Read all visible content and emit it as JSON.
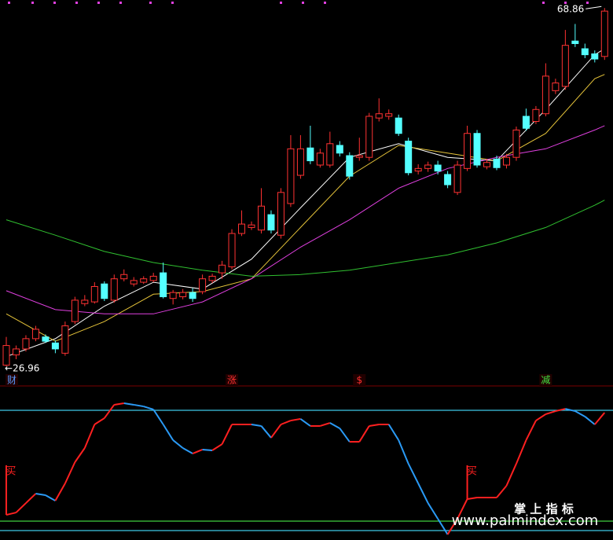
{
  "chart_data": {
    "type": "candlestick",
    "ylim": [
      25.5,
      69.8
    ],
    "up_color": "#ff3232",
    "down_color": "#54ffff",
    "candles": [
      [
        27.1,
        30.4,
        26.96,
        29.4
      ],
      [
        28.3,
        29.4,
        27.8,
        29.0
      ],
      [
        29.0,
        30.6,
        28.7,
        30.2
      ],
      [
        30.2,
        31.7,
        29.9,
        31.3
      ],
      [
        30.4,
        30.7,
        29.7,
        29.9
      ],
      [
        29.7,
        30.0,
        28.5,
        29.0
      ],
      [
        28.5,
        32.2,
        28.2,
        31.7
      ],
      [
        32.2,
        35.1,
        31.9,
        34.7
      ],
      [
        34.3,
        35.3,
        34.0,
        34.7
      ],
      [
        34.5,
        36.8,
        34.3,
        36.3
      ],
      [
        36.6,
        36.9,
        34.6,
        34.9
      ],
      [
        34.7,
        37.7,
        34.4,
        37.2
      ],
      [
        37.2,
        38.3,
        36.9,
        37.7
      ],
      [
        36.6,
        37.4,
        36.3,
        37.0
      ],
      [
        36.8,
        37.5,
        36.6,
        37.2
      ],
      [
        37.0,
        37.9,
        36.8,
        37.5
      ],
      [
        37.9,
        39.1,
        34.9,
        35.1
      ],
      [
        34.9,
        35.9,
        34.2,
        35.6
      ],
      [
        35.1,
        36.0,
        34.8,
        35.6
      ],
      [
        35.6,
        36.1,
        34.5,
        34.9
      ],
      [
        35.7,
        37.7,
        35.4,
        37.2
      ],
      [
        37.0,
        37.8,
        36.7,
        37.5
      ],
      [
        37.9,
        39.3,
        37.2,
        38.8
      ],
      [
        38.6,
        43.0,
        38.3,
        42.5
      ],
      [
        42.5,
        45.2,
        42.2,
        43.6
      ],
      [
        43.2,
        43.9,
        42.9,
        43.5
      ],
      [
        42.9,
        47.8,
        42.5,
        45.7
      ],
      [
        44.7,
        45.2,
        42.5,
        42.9
      ],
      [
        42.3,
        47.8,
        41.9,
        47.3
      ],
      [
        46.0,
        54.0,
        45.6,
        52.4
      ],
      [
        49.3,
        54.0,
        48.9,
        52.4
      ],
      [
        52.5,
        55.1,
        50.6,
        51.0
      ],
      [
        50.5,
        52.4,
        50.2,
        51.9
      ],
      [
        50.5,
        54.4,
        50.2,
        53.0
      ],
      [
        52.8,
        53.3,
        51.5,
        51.9
      ],
      [
        51.6,
        52.0,
        48.8,
        49.2
      ],
      [
        51.4,
        53.7,
        51.0,
        51.6
      ],
      [
        51.4,
        56.6,
        51.0,
        56.2
      ],
      [
        56.0,
        58.3,
        55.6,
        56.5
      ],
      [
        56.2,
        57.0,
        55.8,
        56.5
      ],
      [
        56.0,
        56.4,
        53.9,
        54.2
      ],
      [
        53.3,
        53.7,
        49.3,
        49.6
      ],
      [
        49.8,
        50.6,
        49.4,
        50.1
      ],
      [
        50.1,
        50.9,
        49.7,
        50.5
      ],
      [
        50.5,
        51.0,
        49.4,
        49.8
      ],
      [
        49.4,
        49.8,
        47.8,
        48.2
      ],
      [
        47.3,
        51.0,
        47.0,
        50.5
      ],
      [
        50.1,
        55.1,
        49.8,
        54.2
      ],
      [
        54.2,
        54.6,
        50.2,
        50.5
      ],
      [
        50.3,
        51.2,
        50.0,
        50.8
      ],
      [
        51.2,
        51.6,
        49.9,
        50.2
      ],
      [
        50.5,
        51.8,
        50.1,
        51.4
      ],
      [
        51.4,
        55.0,
        51.0,
        54.6
      ],
      [
        56.2,
        57.1,
        54.5,
        54.8
      ],
      [
        55.6,
        57.4,
        55.3,
        57.0
      ],
      [
        56.5,
        62.4,
        56.2,
        60.9
      ],
      [
        59.2,
        60.6,
        58.8,
        60.1
      ],
      [
        59.7,
        66.3,
        59.3,
        64.5
      ],
      [
        65.0,
        67.0,
        64.3,
        64.7
      ],
      [
        64.1,
        64.7,
        63.0,
        63.4
      ],
      [
        63.5,
        63.9,
        62.5,
        62.9
      ],
      [
        63.2,
        68.86,
        62.8,
        68.5
      ]
    ],
    "moving_averages": [
      {
        "color": "#ffffff",
        "x": [
          0,
          5,
          10,
          15,
          20,
          25,
          30,
          35,
          40,
          45,
          50,
          55,
          60,
          61
        ],
        "values": [
          28.1,
          30.2,
          34.0,
          36.8,
          36.0,
          39.5,
          45.5,
          51.4,
          53.0,
          51.4,
          51.0,
          57.0,
          63.4,
          64.1
        ]
      },
      {
        "color": "#e6c43a",
        "x": [
          0,
          5,
          10,
          15,
          20,
          25,
          30,
          35,
          40,
          45,
          50,
          55,
          60,
          61
        ],
        "values": [
          33.1,
          29.9,
          32.2,
          35.4,
          35.7,
          37.2,
          43.2,
          49.2,
          52.8,
          51.9,
          51.0,
          54.2,
          60.6,
          61.1
        ]
      },
      {
        "color": "#e040e0",
        "x": [
          0,
          5,
          10,
          15,
          20,
          25,
          30,
          35,
          40,
          45,
          50,
          55,
          60,
          61
        ],
        "values": [
          35.8,
          33.6,
          33.1,
          33.1,
          34.5,
          37.2,
          40.9,
          44.1,
          47.8,
          50.1,
          51.4,
          52.4,
          54.6,
          55.1
        ]
      },
      {
        "color": "#30c030",
        "x": [
          0,
          5,
          10,
          15,
          20,
          25,
          30,
          35,
          40,
          45,
          50,
          55,
          60,
          61
        ],
        "values": [
          44.1,
          42.3,
          40.4,
          39.1,
          38.2,
          37.5,
          37.7,
          38.2,
          39.1,
          40.0,
          41.4,
          43.2,
          45.8,
          46.4
        ]
      }
    ],
    "max_marker": {
      "value": 68.86,
      "label": "68.86"
    },
    "min_marker": {
      "value": 26.96,
      "label": "←26.96"
    },
    "events": [
      {
        "label": "财",
        "color": "#5a9bff"
      },
      null,
      null,
      null,
      null,
      null,
      null,
      null,
      null,
      null,
      null,
      null,
      null,
      null,
      null,
      null,
      null,
      null,
      null,
      null,
      null,
      null,
      null,
      {
        "label": "涨",
        "color": "#ff3030"
      },
      null,
      null,
      null,
      null,
      null,
      null,
      null,
      null,
      null,
      null,
      null,
      null,
      {
        "label": "$",
        "color": "#ff3030"
      },
      null,
      null,
      null,
      null,
      null,
      null,
      null,
      null,
      null,
      null,
      null,
      null,
      null,
      null,
      null,
      null,
      null,
      null,
      {
        "label": "减",
        "color": "#40e040"
      },
      null,
      null,
      null,
      null
    ],
    "indicator": {
      "ylim": [
        -10,
        110
      ],
      "rise_color": "#ff2020",
      "fall_color": "#2a9af5",
      "levels": [
        {
          "value": 100,
          "color": "#3cc8e6"
        },
        {
          "value": 6,
          "color": "#40d040"
        },
        {
          "value": -2,
          "color": "#3cc8e6"
        }
      ],
      "values": [
        11.3,
        13.3,
        21.3,
        29.3,
        28,
        23.3,
        38,
        56,
        68,
        88,
        93.3,
        104.7,
        106,
        104.7,
        103.3,
        100.7,
        88,
        74.7,
        68,
        63.3,
        66.7,
        66,
        71.3,
        88,
        88,
        88,
        86.7,
        76.7,
        88,
        91.3,
        92.7,
        86.7,
        86.7,
        89.3,
        84.7,
        73.3,
        73.3,
        86.7,
        88,
        88,
        74.7,
        54.7,
        38,
        21.3,
        8,
        -5.3,
        8,
        24.7,
        26,
        26,
        26,
        36,
        54.7,
        74.7,
        91.3,
        96.7,
        99.3,
        101.3,
        99.3,
        94.7,
        88,
        98
      ],
      "signals": [
        "买",
        null,
        null,
        null,
        null,
        null,
        null,
        null,
        null,
        null,
        null,
        null,
        null,
        null,
        null,
        null,
        null,
        null,
        null,
        null,
        null,
        null,
        null,
        null,
        null,
        null,
        null,
        null,
        null,
        null,
        null,
        null,
        null,
        null,
        null,
        null,
        null,
        null,
        null,
        null,
        null,
        null,
        null,
        null,
        null,
        null,
        null,
        "买",
        null,
        null,
        null,
        null,
        null,
        null,
        null,
        null,
        null,
        null,
        null,
        null,
        null,
        null
      ]
    },
    "watermark": {
      "title": "掌 上 指 标",
      "url": "www.palmindex.com"
    }
  }
}
